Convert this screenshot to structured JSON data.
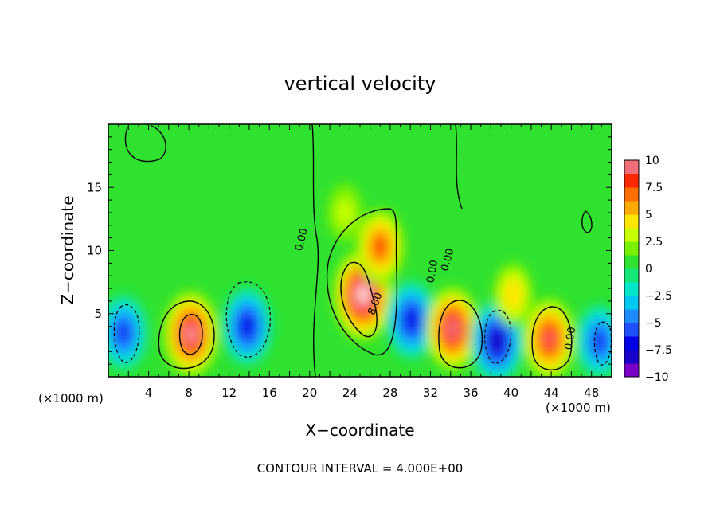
{
  "chart_data": {
    "type": "heatmap",
    "title": "vertical velocity",
    "xlabel": "X−coordinate",
    "ylabel": "Z−coordinate",
    "x_unit": "(×1000 m)",
    "x_unit_right": "(×1000 m)",
    "footer": "CONTOUR INTERVAL = 4.000E+00",
    "xlim": [
      0,
      50
    ],
    "ylim": [
      0,
      20
    ],
    "x_ticks": [
      4,
      8,
      12,
      16,
      20,
      24,
      28,
      32,
      36,
      40,
      44,
      48
    ],
    "x_tick_labels": [
      "4",
      "8",
      "12",
      "16",
      "20",
      "24",
      "28",
      "32",
      "36",
      "40",
      "44",
      "48"
    ],
    "y_ticks": [
      5,
      10,
      15
    ],
    "y_tick_labels": [
      "5",
      "10",
      "15"
    ],
    "colorbar": {
      "range": [
        -10,
        10
      ],
      "ticks": [
        10,
        7.5,
        5,
        2.5,
        0,
        -2.5,
        -5,
        -7.5,
        -10
      ],
      "tick_labels": [
        "10",
        "7.5",
        "5",
        "2.5",
        "0",
        "−2.5",
        "−5",
        "−7.5",
        "−10"
      ]
    },
    "contour_labels": [
      {
        "text": "0.00",
        "x": 19.5,
        "y": 10.8,
        "rotate": -75
      },
      {
        "text": "0.00",
        "x": 32.5,
        "y": 8.3,
        "rotate": -80
      },
      {
        "text": "0.00",
        "x": 34.0,
        "y": 9.2,
        "rotate": -75
      },
      {
        "text": "0.00",
        "x": 46.2,
        "y": 3.0,
        "rotate": -80
      },
      {
        "text": "8.00",
        "x": 26.8,
        "y": 5.7,
        "rotate": -70
      }
    ],
    "cells": [
      {
        "x": 1.5,
        "y": 3.5,
        "v": -7.5
      },
      {
        "x": 8.2,
        "y": 3.4,
        "v": 9.5
      },
      {
        "x": 13.8,
        "y": 4.0,
        "v": -8.0
      },
      {
        "x": 25.3,
        "y": 6.5,
        "v": 11.0
      },
      {
        "x": 27.0,
        "y": 10.3,
        "v": 7.0
      },
      {
        "x": 30.1,
        "y": 4.5,
        "v": -8.0
      },
      {
        "x": 34.2,
        "y": 3.8,
        "v": 9.0
      },
      {
        "x": 38.6,
        "y": 2.8,
        "v": -9.0
      },
      {
        "x": 43.8,
        "y": 3.0,
        "v": 8.5
      },
      {
        "x": 48.8,
        "y": 2.8,
        "v": -7.0
      },
      {
        "x": 23.5,
        "y": 13.0,
        "v": 2.5
      },
      {
        "x": 40.2,
        "y": 6.5,
        "v": 4.0
      }
    ]
  }
}
